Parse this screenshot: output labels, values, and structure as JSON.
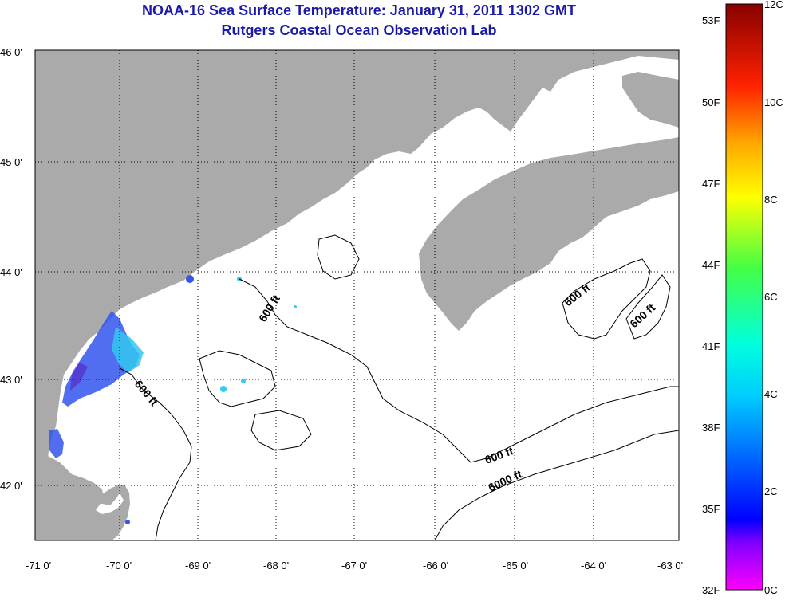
{
  "title": {
    "line1": "NOAA-16 Sea Surface Temperature:  January 31, 2011 1302 GMT",
    "line2": "Rutgers Coastal Ocean Observation Lab"
  },
  "axes": {
    "x_ticks": [
      "-71 0'",
      "-70 0'",
      "-69 0'",
      "-68 0'",
      "-67 0'",
      "-66 0'",
      "-65 0'",
      "-64 0'",
      "-63 0'"
    ],
    "y_ticks": [
      "46 0'",
      "45 0'",
      "44 0'",
      "43 0'",
      "42 0'"
    ]
  },
  "contour_labels": {
    "a": "600 ft",
    "b": "600 ft",
    "c": "600 ft",
    "d": "600 ft",
    "e": "600 ft",
    "f": "6000 ft"
  },
  "colorbar": {
    "fahrenheit": [
      "53F",
      "50F",
      "47F",
      "44F",
      "41F",
      "38F",
      "35F",
      "32F"
    ],
    "celsius": [
      "12C",
      "10C",
      "8C",
      "6C",
      "4C",
      "2C",
      "0C"
    ]
  },
  "colors": {
    "land": "#aaaaaa",
    "title": "#1a1aa8",
    "water": "#ffffff"
  }
}
